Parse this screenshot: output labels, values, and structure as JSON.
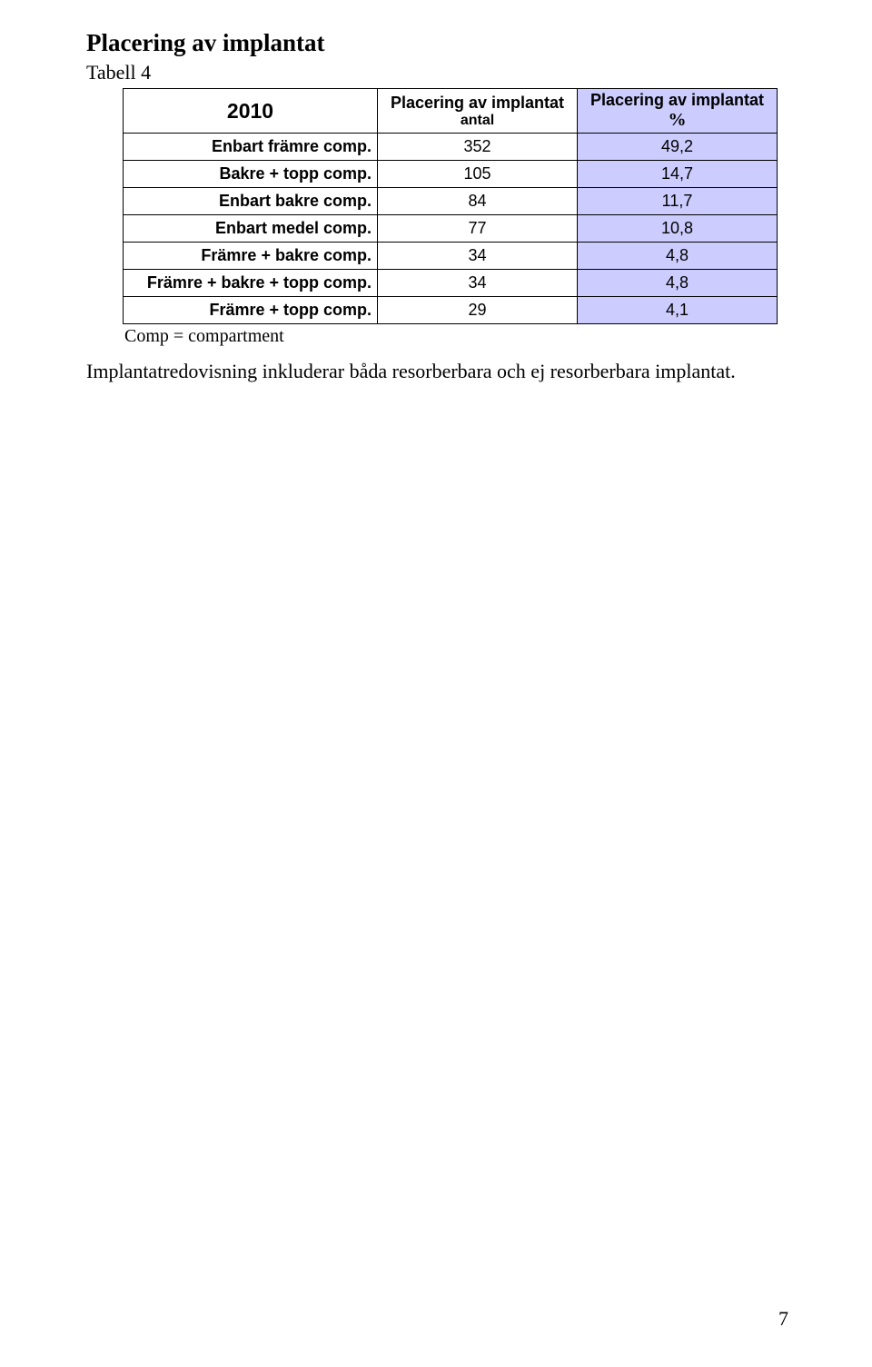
{
  "title": "Placering av implantat",
  "table_label": "Tabell 4",
  "header": {
    "year": "2010",
    "col1_line1": "Placering av implantat",
    "col1_line2": "antal",
    "col2_line1": "Placering av implantat",
    "col2_line2": "%",
    "col2_bg": "#ccccff"
  },
  "rows": [
    {
      "label": "Enbart främre comp.",
      "antal": "352",
      "pct": "49,2"
    },
    {
      "label": "Bakre + topp comp.",
      "antal": "105",
      "pct": "14,7"
    },
    {
      "label": "Enbart bakre comp.",
      "antal": "84",
      "pct": "11,7"
    },
    {
      "label": "Enbart medel comp.",
      "antal": "77",
      "pct": "10,8"
    },
    {
      "label": "Främre + bakre comp.",
      "antal": "34",
      "pct": "4,8"
    },
    {
      "label": "Främre + bakre + topp comp.",
      "antal": "34",
      "pct": "4,8"
    },
    {
      "label": "Främre + topp comp.",
      "antal": "29",
      "pct": "4,1"
    }
  ],
  "row_pct_bg": "#ccccff",
  "note": "Comp = compartment",
  "bodytext": "Implantatredovisning inkluderar båda resorberbara och ej resorberbara implantat.",
  "page_number": "7"
}
